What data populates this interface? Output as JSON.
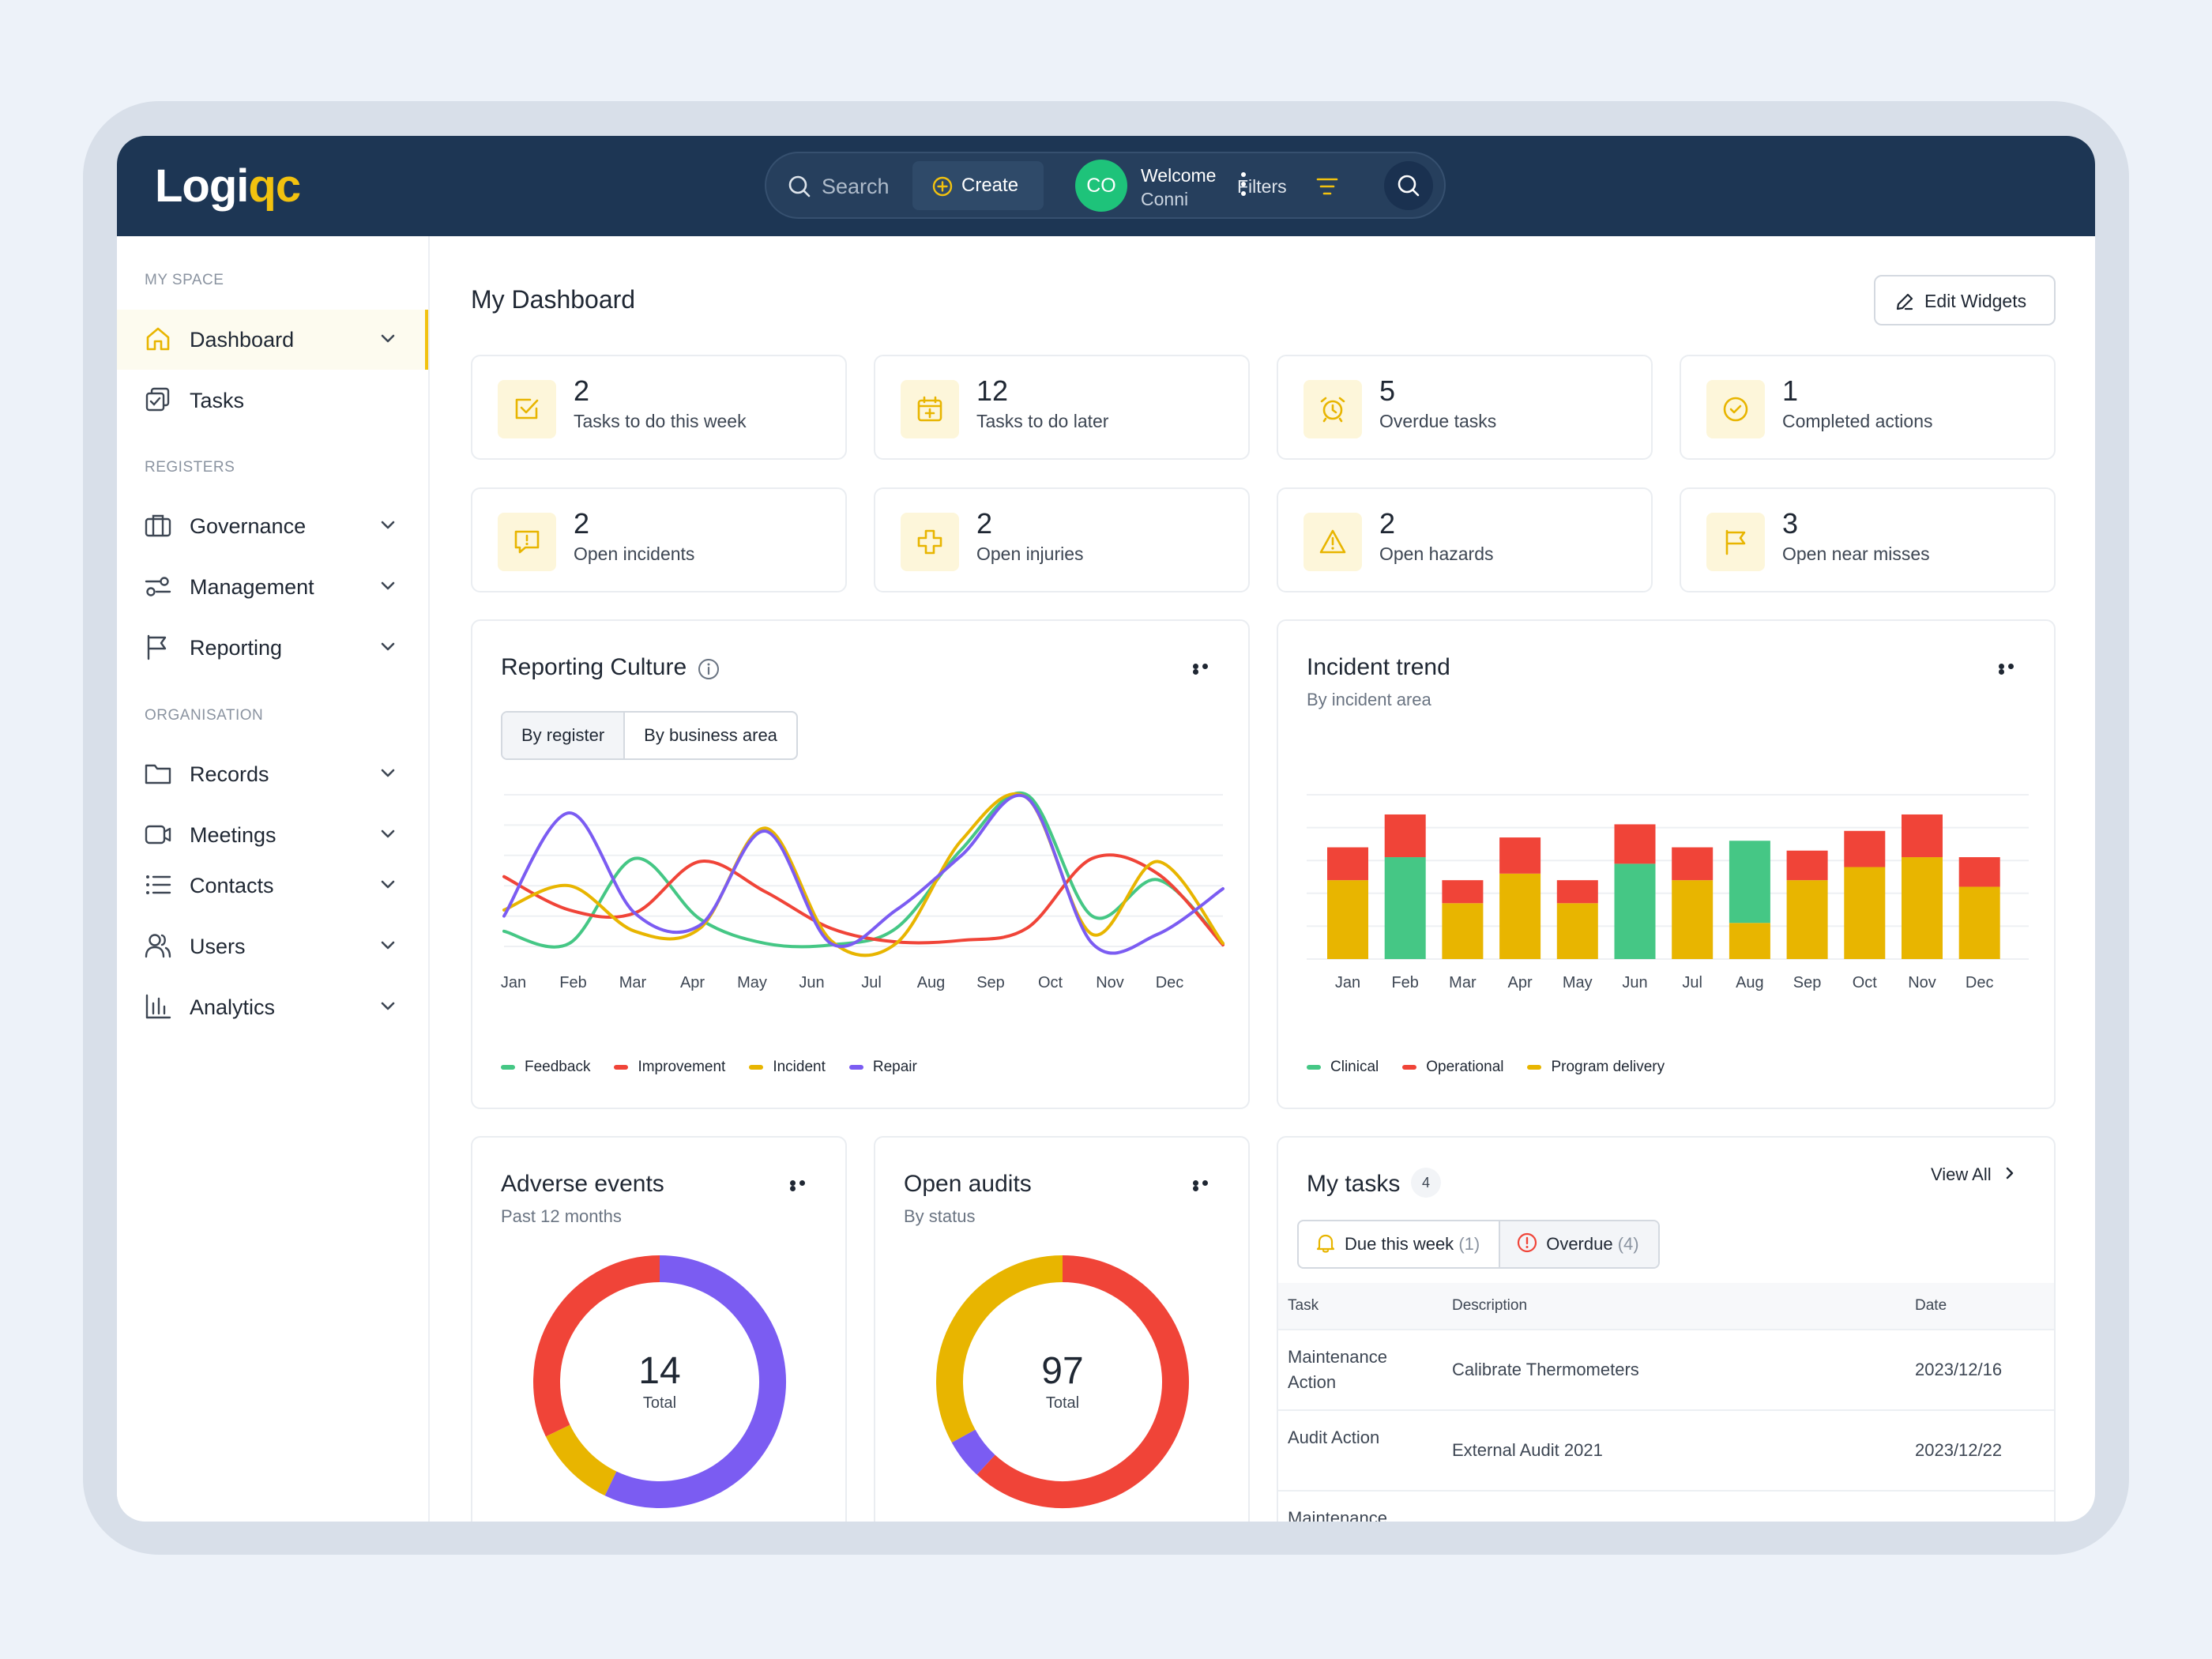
{
  "app": {
    "logo_part1": "Logi",
    "logo_part2": "qc"
  },
  "topbar": {
    "search_placeholder": "Search",
    "filters_label": "Filters",
    "create_label": "Create",
    "avatar_initials": "CO",
    "welcome_label": "Welcome",
    "user_name": "Conni"
  },
  "sidebar": {
    "sections": {
      "myspace": "MY SPACE",
      "registers": "REGISTERS",
      "organisation": "ORGANISATION"
    },
    "items": [
      {
        "label": "Dashboard",
        "icon": "home-icon"
      },
      {
        "label": "Tasks",
        "icon": "tasks-icon"
      },
      {
        "label": "Governance",
        "icon": "briefcase-icon"
      },
      {
        "label": "Management",
        "icon": "sliders-icon"
      },
      {
        "label": "Reporting",
        "icon": "flag-icon"
      },
      {
        "label": "Records",
        "icon": "folder-icon"
      },
      {
        "label": "Meetings",
        "icon": "video-icon"
      },
      {
        "label": "Contacts",
        "icon": "list-icon"
      },
      {
        "label": "Users",
        "icon": "users-icon"
      },
      {
        "label": "Analytics",
        "icon": "bar-chart-icon"
      }
    ]
  },
  "dashboard": {
    "title": "My Dashboard",
    "edit_widgets_label": "Edit Widgets"
  },
  "stats": [
    {
      "value": "2",
      "label": "Tasks to do this week",
      "icon": "checkbox-icon"
    },
    {
      "value": "12",
      "label": "Tasks to do later",
      "icon": "calendar-plus-icon"
    },
    {
      "value": "5",
      "label": "Overdue tasks",
      "icon": "alarm-icon"
    },
    {
      "value": "1",
      "label": "Completed actions",
      "icon": "check-circle-icon"
    },
    {
      "value": "2",
      "label": "Open incidents",
      "icon": "message-alert-icon"
    },
    {
      "value": "2",
      "label": "Open injuries",
      "icon": "medical-cross-icon"
    },
    {
      "value": "2",
      "label": "Open hazards",
      "icon": "warning-icon"
    },
    {
      "value": "3",
      "label": "Open near misses",
      "icon": "flag-icon"
    }
  ],
  "reporting_culture": {
    "title": "Reporting Culture",
    "tabs": [
      "By register",
      "By business area"
    ],
    "chart_data": {
      "type": "line",
      "title": "Reporting Culture",
      "x": [
        "Jan",
        "Feb",
        "Mar",
        "Apr",
        "May",
        "Jun",
        "Jul",
        "Aug",
        "Sep",
        "Oct",
        "Nov",
        "Dec"
      ],
      "grid": true,
      "legend_placement": "bottom",
      "series": [
        {
          "name": "Feedback",
          "color": "#45c785",
          "values": [
            0.5,
            0.1,
            2.9,
            0.9,
            0.1,
            0.05,
            0.6,
            3.2,
            5.0,
            1.0,
            2.2,
            0.1
          ]
        },
        {
          "name": "Improvement",
          "color": "#f04438",
          "values": [
            2.3,
            1.2,
            1.1,
            2.8,
            1.8,
            0.6,
            0.15,
            0.2,
            0.6,
            2.9,
            2.4,
            0.05
          ]
        },
        {
          "name": "Incident",
          "color": "#e8b500",
          "values": [
            1.2,
            2.0,
            0.5,
            0.6,
            3.9,
            0.2,
            0.1,
            3.5,
            4.9,
            0.4,
            2.8,
            0.1
          ]
        },
        {
          "name": "Repair",
          "color": "#7b5cf2",
          "values": [
            1.0,
            4.4,
            1.1,
            0.7,
            3.8,
            0.1,
            1.2,
            3.0,
            4.9,
            0.1,
            0.4,
            1.9
          ]
        }
      ]
    }
  },
  "incident_trend": {
    "title": "Incident trend",
    "subtitle": "By incident area",
    "chart_data": {
      "type": "bar",
      "stacked": true,
      "title": "Incident trend",
      "subtitle": "By incident area",
      "categories": [
        "Jan",
        "Feb",
        "Mar",
        "Apr",
        "May",
        "Jun",
        "Jul",
        "Aug",
        "Sep",
        "Oct",
        "Nov",
        "Dec"
      ],
      "grid": true,
      "legend_placement": "bottom",
      "series": [
        {
          "name": "Clinical",
          "color": "#45c785",
          "values": [
            0,
            3.1,
            0,
            0,
            0,
            2.9,
            0,
            2.5,
            0,
            0,
            0,
            0
          ]
        },
        {
          "name": "Operational",
          "color": "#f04438",
          "values": [
            1.0,
            1.3,
            0.7,
            1.1,
            0.7,
            1.2,
            1.0,
            0,
            0.9,
            1.1,
            1.3,
            0.9
          ]
        },
        {
          "name": "Program delivery",
          "color": "#e8b500",
          "values": [
            2.4,
            0,
            1.7,
            2.6,
            1.7,
            0,
            2.4,
            1.1,
            2.4,
            2.8,
            3.1,
            2.2
          ]
        }
      ]
    }
  },
  "adverse_events": {
    "title": "Adverse events",
    "subtitle": "Past 12 months",
    "total": "14",
    "total_label": "Total",
    "chart_data": {
      "type": "pie",
      "donut": true,
      "title": "Adverse events",
      "total": 14,
      "slices": [
        {
          "color": "#7b5cf2",
          "value": 8
        },
        {
          "color": "#e8b500",
          "value": 1.5
        },
        {
          "color": "#f04438",
          "value": 4.5
        }
      ]
    }
  },
  "open_audits": {
    "title": "Open audits",
    "subtitle": "By status",
    "total": "97",
    "total_label": "Total",
    "chart_data": {
      "type": "pie",
      "donut": true,
      "title": "Open audits",
      "total": 97,
      "slices": [
        {
          "color": "#f04438",
          "value": 60
        },
        {
          "color": "#7b5cf2",
          "value": 5
        },
        {
          "color": "#e8b500",
          "value": 32
        }
      ]
    }
  },
  "my_tasks": {
    "title": "My tasks",
    "count": "4",
    "view_all_label": "View All",
    "tabs": [
      {
        "label": "Due this week",
        "count": "(1)"
      },
      {
        "label": "Overdue",
        "count": "(4)"
      }
    ],
    "columns": [
      "Task",
      "Description",
      "Date"
    ],
    "rows": [
      {
        "task": "Maintenance Action",
        "description": "Calibrate Thermometers",
        "date": "2023/12/16"
      },
      {
        "task": "Audit Action",
        "description": "External Audit 2021",
        "date": "2023/12/22"
      },
      {
        "task": "Maintenance",
        "description": "",
        "date": ""
      }
    ]
  }
}
